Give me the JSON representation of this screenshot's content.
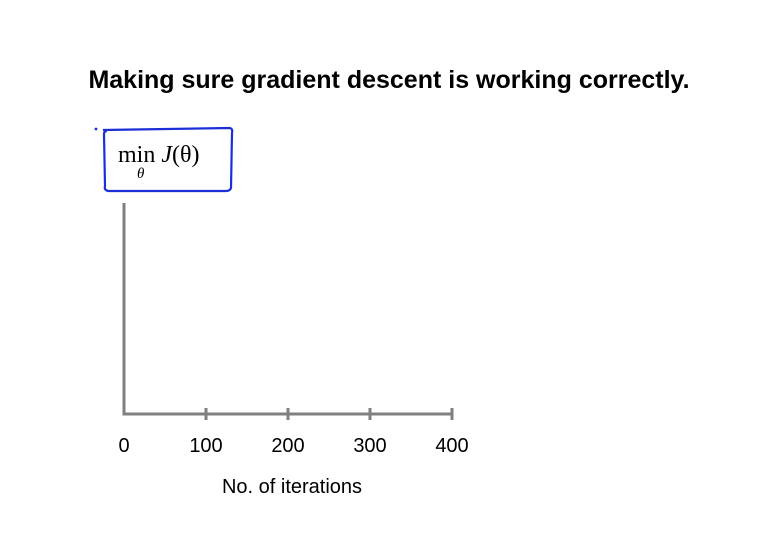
{
  "title": "Making sure gradient descent is working correctly.",
  "annotation": {
    "operator": "min",
    "subscript": "θ",
    "function": "J",
    "argument": "(θ)",
    "ink_color": "#1a2fd6"
  },
  "chart_data": {
    "type": "line",
    "title": "Making sure gradient descent is working correctly.",
    "xlabel": "No. of iterations",
    "ylabel": "min_θ J(θ)",
    "x_ticks": [
      0,
      100,
      200,
      300,
      400
    ],
    "xlim": [
      0,
      400
    ],
    "series": [],
    "grid": false,
    "axis_color": "#808080"
  }
}
